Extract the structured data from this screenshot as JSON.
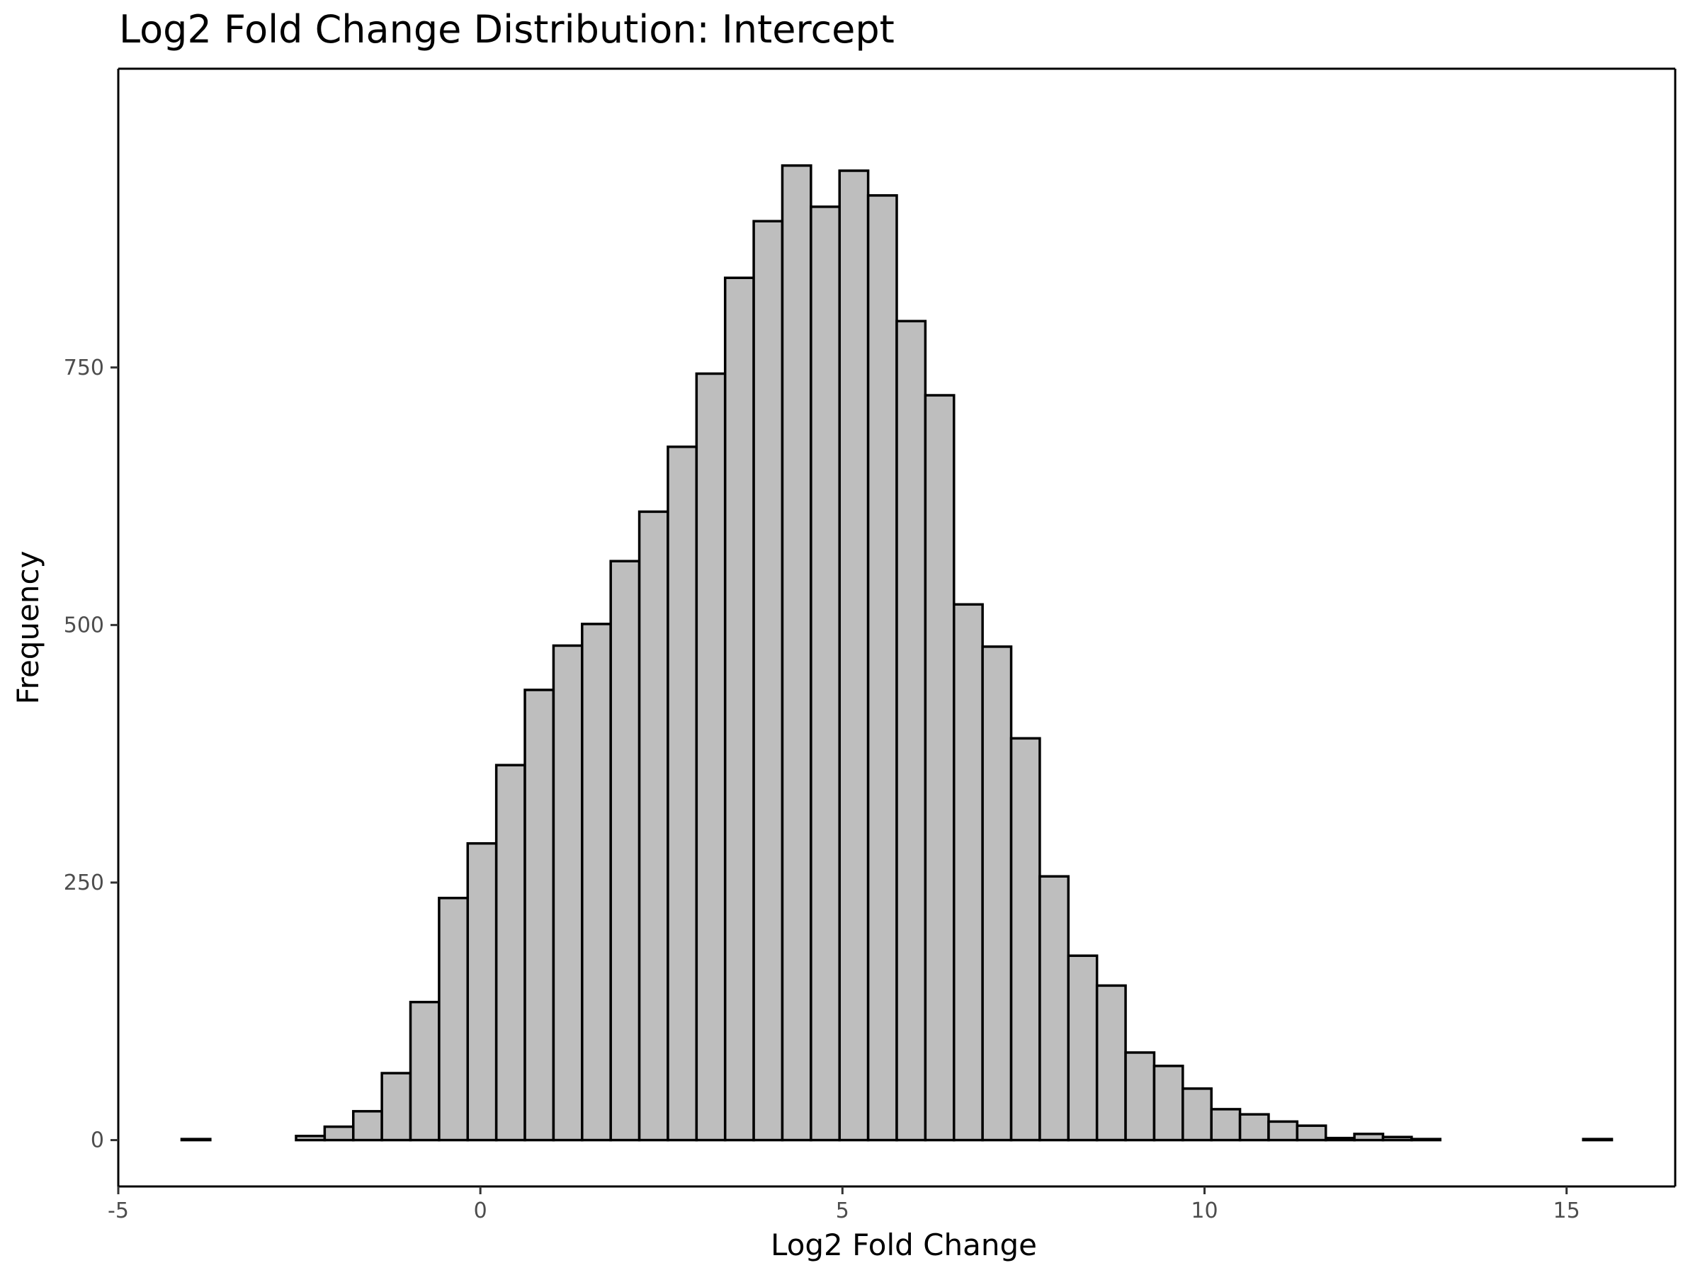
{
  "chart_data": {
    "type": "bar",
    "title": "Log2 Fold Change Distribution: Intercept",
    "xlabel": "Log2 Fold Change",
    "ylabel": "Frequency",
    "xlim": [
      -5,
      16.5
    ],
    "ylim": [
      -45,
      1040
    ],
    "x_ticks": [
      -5,
      0,
      5,
      10,
      15
    ],
    "x_tick_labels": [
      "-5",
      "0",
      "5",
      "10",
      "15"
    ],
    "y_ticks": [
      0,
      250,
      500,
      750
    ],
    "y_tick_labels": [
      "0",
      "250",
      "500",
      "750"
    ],
    "bin_start": -4.125,
    "bin_width": 0.395,
    "values": [
      1,
      0,
      0,
      0,
      4,
      13,
      28,
      65,
      134,
      235,
      288,
      364,
      437,
      480,
      501,
      562,
      610,
      673,
      744,
      837,
      892,
      946,
      906,
      941,
      917,
      795,
      723,
      520,
      479,
      390,
      256,
      179,
      150,
      85,
      72,
      50,
      30,
      25,
      18,
      14,
      2,
      6,
      3,
      1,
      0,
      0,
      0,
      0,
      0,
      1
    ],
    "grid": false,
    "legend": "none"
  }
}
